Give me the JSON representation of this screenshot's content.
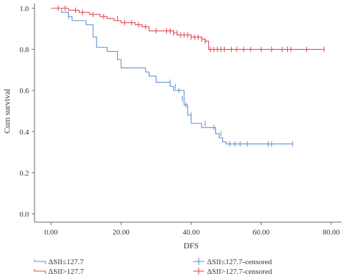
{
  "colors": {
    "series_low": "#5b8fd0",
    "series_high": "#e0404a",
    "axis": "#666666"
  },
  "legend_placement": "bottom",
  "legend": {
    "items": [
      {
        "label": "ΔSII≤127.7",
        "series": 0,
        "kind": "line"
      },
      {
        "label": "ΔSII>127.7",
        "series": 1,
        "kind": "line"
      },
      {
        "label": "ΔSII≤127.7-censored",
        "series": 0,
        "kind": "censor"
      },
      {
        "label": "ΔSII>127.7-censored",
        "series": 1,
        "kind": "censor"
      }
    ]
  },
  "chart_data": {
    "type": "line",
    "title": "",
    "xlabel": "DFS",
    "ylabel": "Cum survival",
    "xlim": [
      0,
      80
    ],
    "ylim": [
      0,
      1.0
    ],
    "x_ticks": [
      0,
      20,
      40,
      60,
      80
    ],
    "x_tick_labels": [
      "0.00",
      "20.00",
      "40.00",
      "60.00",
      "80.00"
    ],
    "y_ticks": [
      0,
      0.2,
      0.4,
      0.6,
      0.8,
      1.0
    ],
    "y_tick_labels": [
      "0.0",
      "0.2",
      "0.4",
      "0.6",
      "0.8",
      "1.0"
    ],
    "grid": false,
    "series": [
      {
        "name": "ΔSII≤127.7",
        "step_x": [
          0,
          3,
          5,
          6,
          10,
          12,
          13,
          16,
          19,
          20,
          27,
          28,
          30,
          34,
          35,
          38,
          39,
          40,
          43,
          47,
          48,
          49,
          50
        ],
        "step_y": [
          1.0,
          0.98,
          0.96,
          0.94,
          0.92,
          0.86,
          0.81,
          0.79,
          0.75,
          0.71,
          0.69,
          0.67,
          0.64,
          0.62,
          0.6,
          0.53,
          0.48,
          0.44,
          0.42,
          0.39,
          0.37,
          0.35,
          0.34
        ],
        "censor_x": [
          5,
          34,
          35.5,
          36.5,
          37.5,
          38.5,
          40,
          44,
          46.5,
          48.5,
          51,
          52.5,
          54,
          56,
          62,
          63,
          69
        ],
        "censor_y": [
          0.96,
          0.64,
          0.62,
          0.6,
          0.56,
          0.53,
          0.48,
          0.44,
          0.42,
          0.39,
          0.34,
          0.34,
          0.34,
          0.34,
          0.34,
          0.34,
          0.34
        ]
      },
      {
        "name": "ΔSII>127.7",
        "step_x": [
          0,
          5,
          8,
          11,
          14,
          16,
          18,
          20,
          24,
          26,
          28,
          33,
          35,
          36,
          40,
          43,
          44,
          45
        ],
        "step_y": [
          1.0,
          0.99,
          0.98,
          0.97,
          0.96,
          0.95,
          0.94,
          0.93,
          0.92,
          0.91,
          0.89,
          0.89,
          0.88,
          0.87,
          0.86,
          0.85,
          0.84,
          0.8
        ],
        "censor_x": [
          2,
          4,
          7,
          9,
          12,
          15,
          19,
          21,
          23,
          25,
          27,
          30,
          33,
          34,
          35,
          36,
          37,
          38,
          39,
          40,
          41,
          42,
          43,
          44,
          45.5,
          46.5,
          47.5,
          48.5,
          49.5,
          51.5,
          53,
          55,
          57,
          60,
          63,
          66,
          67.5,
          68.5,
          73,
          78
        ],
        "censor_y": [
          1.0,
          1.0,
          0.99,
          0.98,
          0.97,
          0.96,
          0.95,
          0.93,
          0.93,
          0.92,
          0.91,
          0.89,
          0.89,
          0.89,
          0.88,
          0.88,
          0.87,
          0.87,
          0.87,
          0.86,
          0.86,
          0.86,
          0.85,
          0.84,
          0.8,
          0.8,
          0.8,
          0.8,
          0.8,
          0.8,
          0.8,
          0.8,
          0.8,
          0.8,
          0.8,
          0.8,
          0.8,
          0.8,
          0.8,
          0.8
        ]
      }
    ]
  }
}
